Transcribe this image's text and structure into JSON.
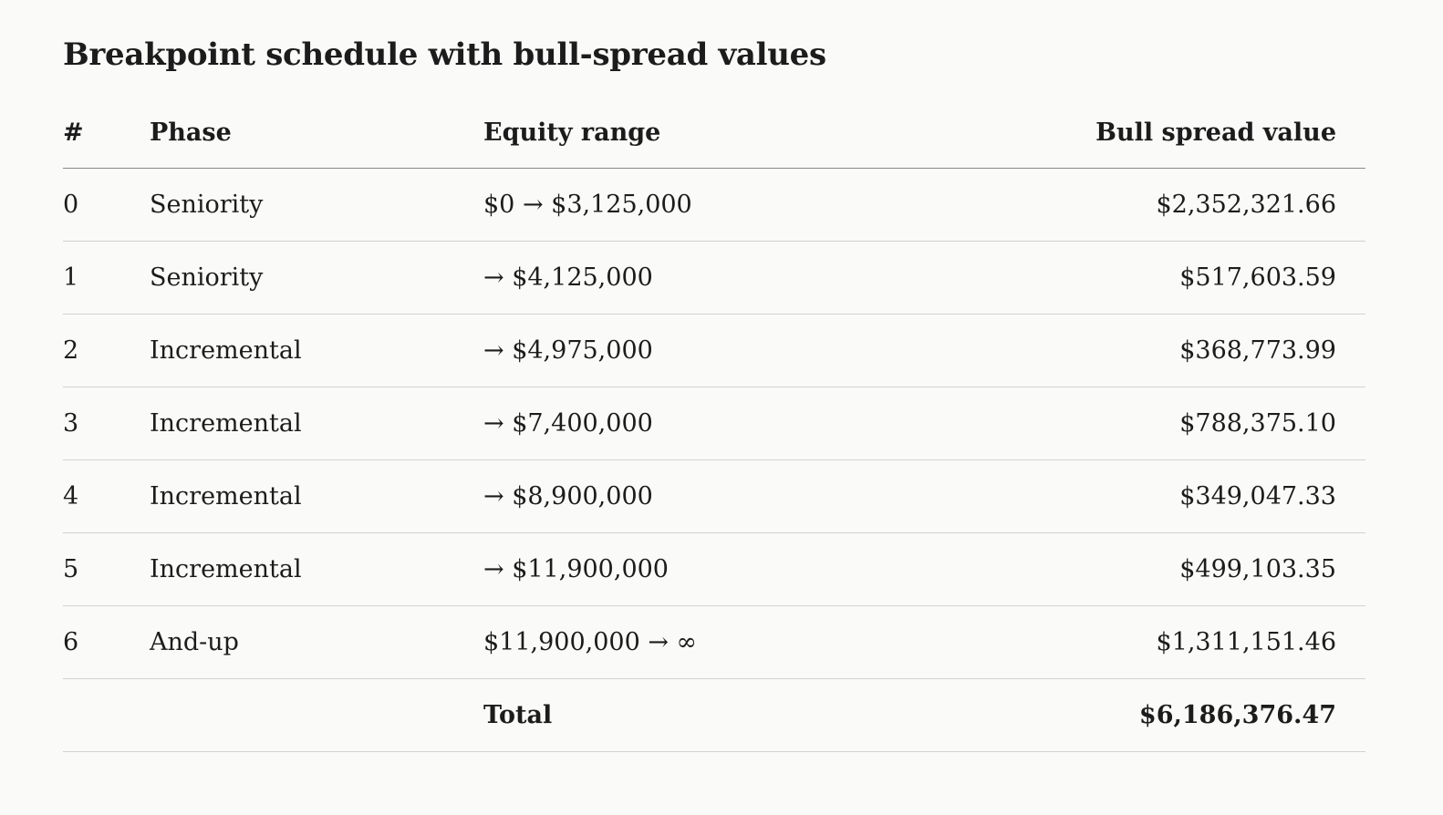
{
  "title": "Breakpoint schedule with bull-spread values",
  "columns": {
    "num": "#",
    "phase": "Phase",
    "range": "Equity range",
    "value": "Bull spread value"
  },
  "rows": [
    {
      "num": "0",
      "phase": "Seniority",
      "range": "$0 → $3,125,000",
      "value": "$2,352,321.66"
    },
    {
      "num": "1",
      "phase": "Seniority",
      "range": "→ $4,125,000",
      "value": "$517,603.59"
    },
    {
      "num": "2",
      "phase": "Incremental",
      "range": "→ $4,975,000",
      "value": "$368,773.99"
    },
    {
      "num": "3",
      "phase": "Incremental",
      "range": "→ $7,400,000",
      "value": "$788,375.10"
    },
    {
      "num": "4",
      "phase": "Incremental",
      "range": "→ $8,900,000",
      "value": "$349,047.33"
    },
    {
      "num": "5",
      "phase": "Incremental",
      "range": "→ $11,900,000",
      "value": "$499,103.35"
    },
    {
      "num": "6",
      "phase": "And-up",
      "range": "$11,900,000 → ∞",
      "value": "$1,311,151.46"
    }
  ],
  "total": {
    "label": "Total",
    "value": "$6,186,376.47"
  }
}
